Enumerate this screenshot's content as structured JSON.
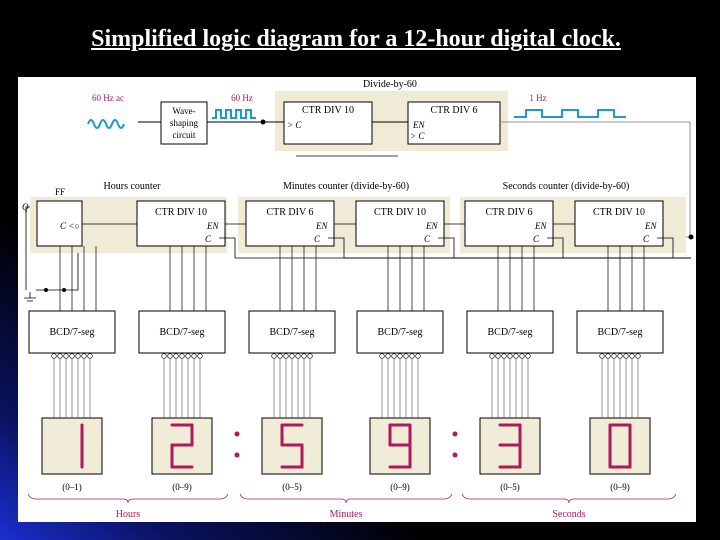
{
  "slide": {
    "title": "Simplified logic diagram for a 12-hour digital clock."
  },
  "diagram": {
    "top": {
      "divide_label": "Divide-by-60",
      "ac_label": "60 Hz ac",
      "wave_shaper": [
        "Wave-",
        "shaping",
        "circuit"
      ],
      "pulse_label": "60 Hz",
      "div10": "CTR DIV 10",
      "div6": "CTR DIV 6",
      "out_label": "1 Hz",
      "en": "EN",
      "c": "C"
    },
    "counters": {
      "ff_label": "FF",
      "q_label": "Q",
      "hours_label": "Hours counter",
      "minutes_label": "Minutes counter (divide-by-60)",
      "seconds_label": "Seconds counter (divide-by-60)",
      "boxes": [
        "CTR DIV 10",
        "CTR DIV 6",
        "CTR DIV 10",
        "CTR DIV 6",
        "CTR DIV 10"
      ]
    },
    "decoder_label": "BCD/7-seg",
    "digits": [
      "1",
      "2",
      "5",
      "9",
      "3",
      "0"
    ],
    "ranges": [
      "(0–1)",
      "(0–9)",
      "(0–5)",
      "(0–9)",
      "(0–5)",
      "(0–9)"
    ],
    "groups": [
      "Hours",
      "Minutes",
      "Seconds"
    ],
    "colors": {
      "accent": "#b0185a",
      "wave": "#1a9ad0",
      "shade": "#efebd6",
      "display": "#f0ecd8"
    }
  }
}
